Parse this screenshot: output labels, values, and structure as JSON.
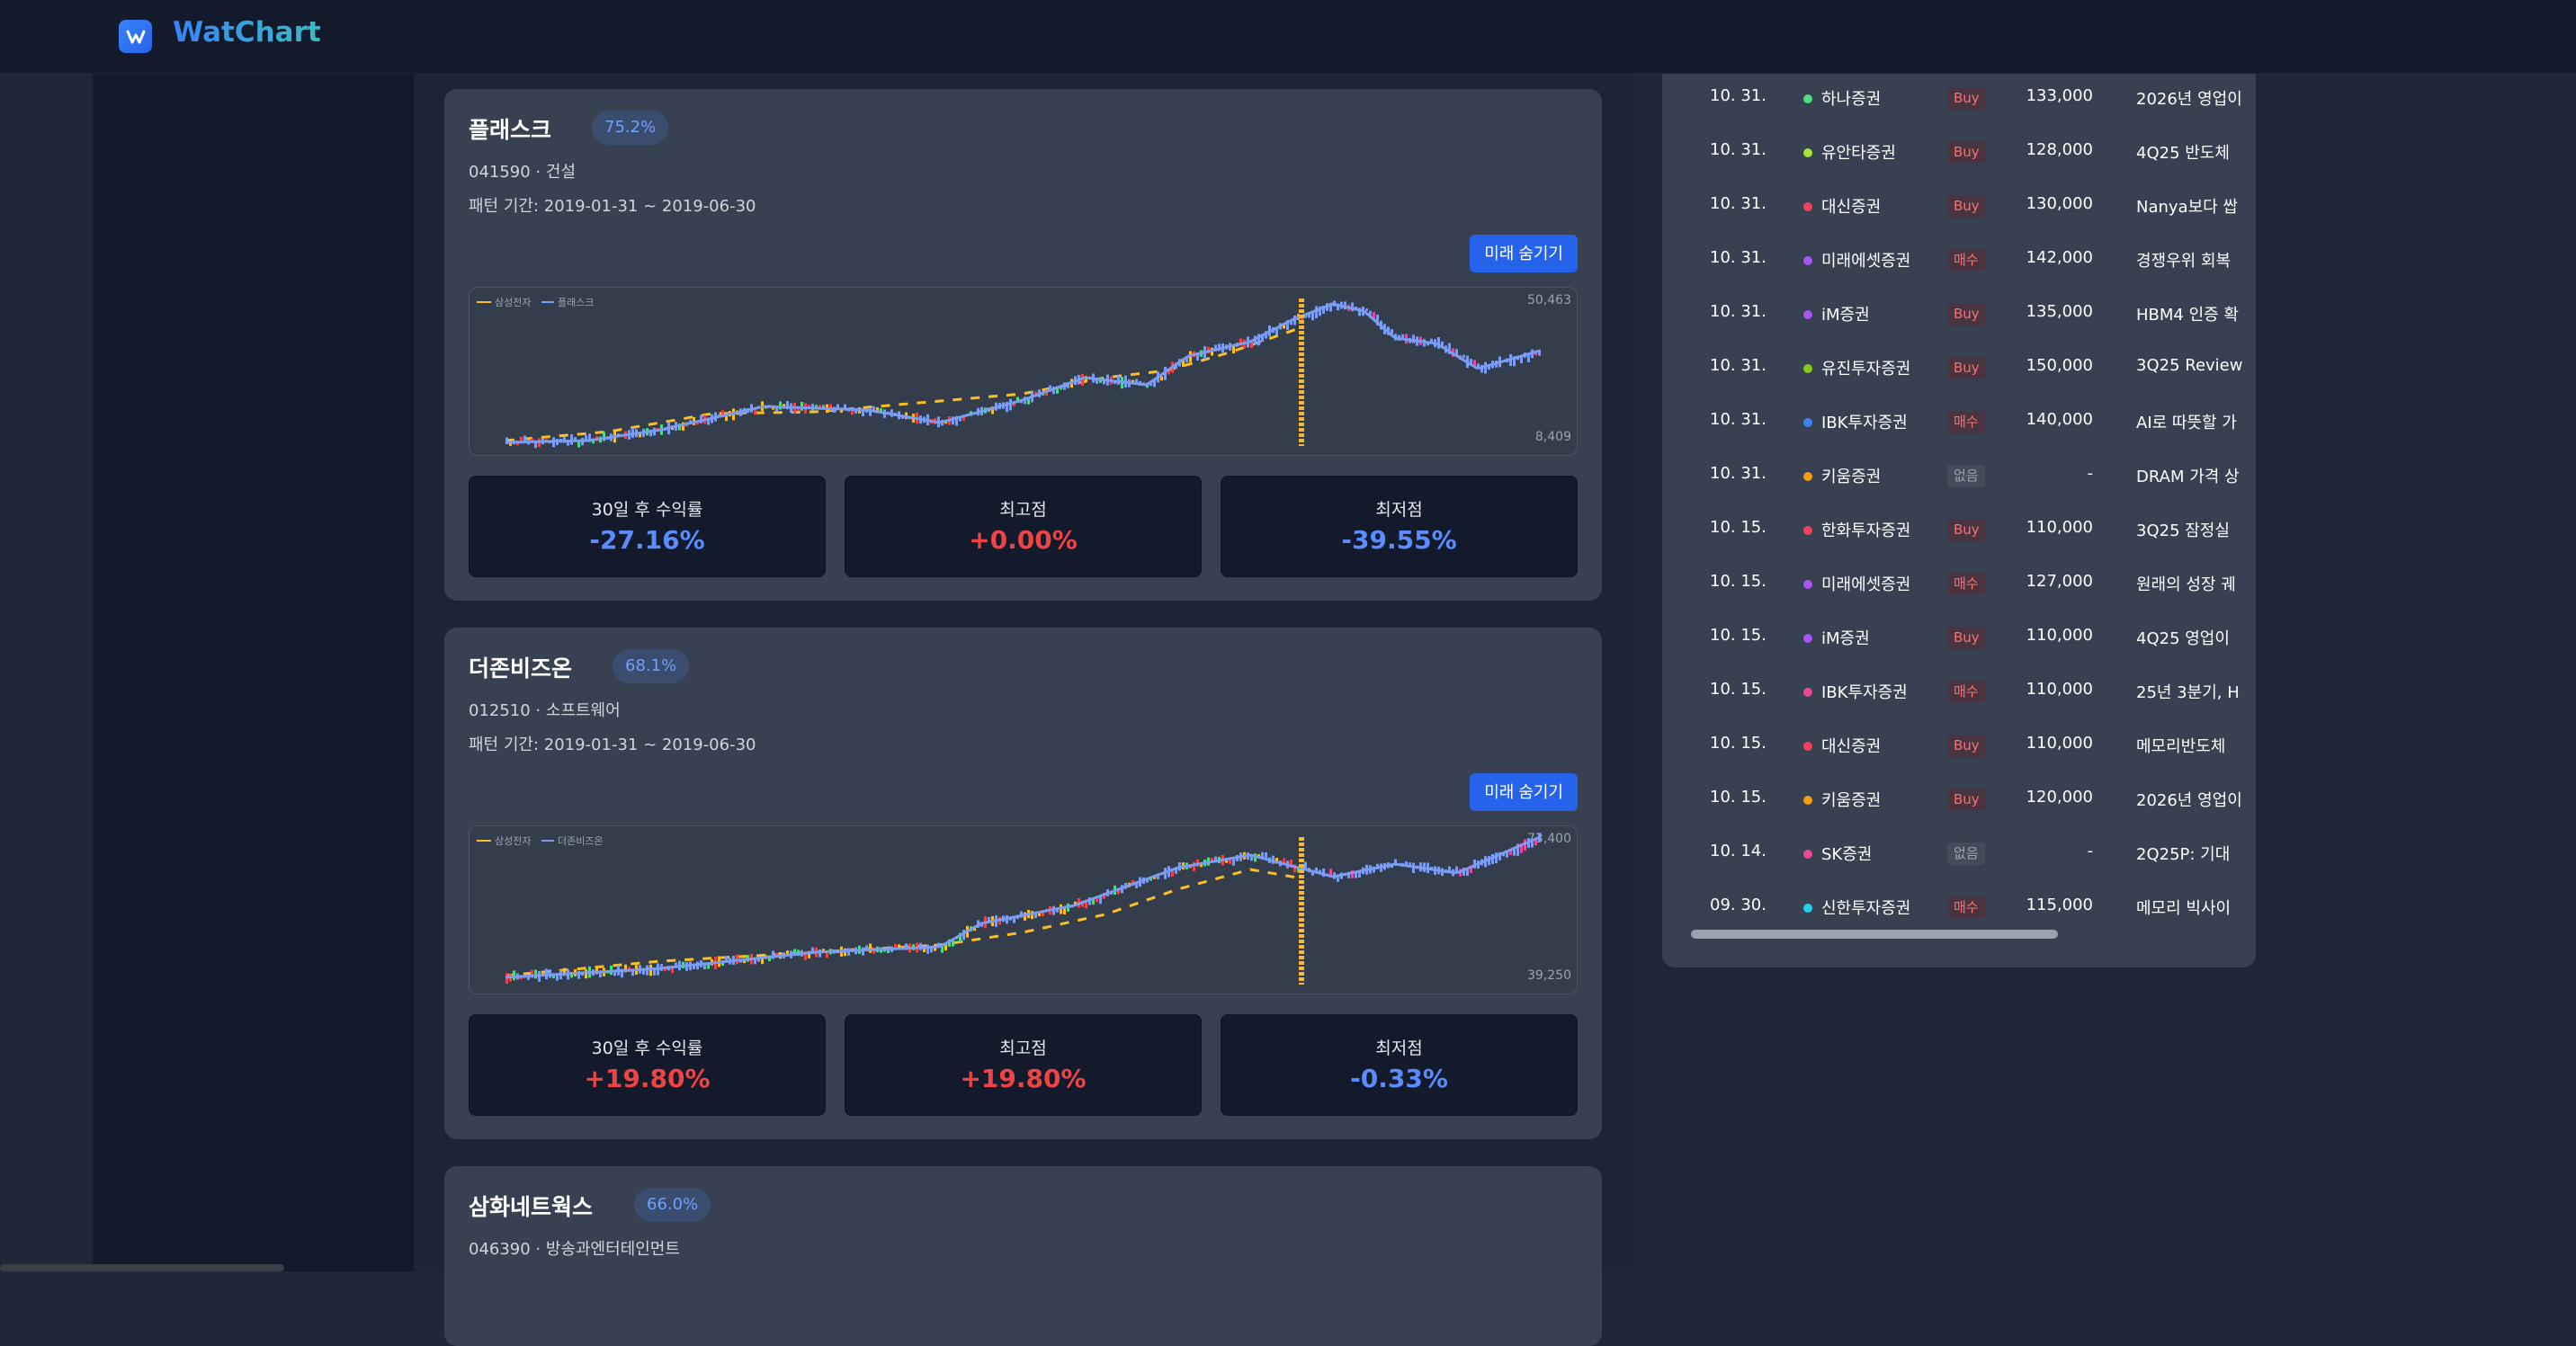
{
  "app": {
    "name": "WatChart"
  },
  "cards": [
    {
      "name": "플래스크",
      "similarity": "75.2%",
      "meta": "041590 · 건설",
      "period": "패턴 기간: 2019-01-31 ~ 2019-06-30",
      "toggle_label": "미래 숨기기",
      "legend_base": "삼성전자",
      "legend_match": "플래스크",
      "axis_max": "50,463",
      "axis_min": "8,409",
      "stats": [
        {
          "label": "30일 후 수익률",
          "value": "-27.16%",
          "sign": "neg"
        },
        {
          "label": "최고점",
          "value": "+0.00%",
          "sign": "pos"
        },
        {
          "label": "최저점",
          "value": "-39.55%",
          "sign": "neg"
        }
      ]
    },
    {
      "name": "더존비즈온",
      "similarity": "68.1%",
      "meta": "012510 · 소프트웨어",
      "period": "패턴 기간: 2019-01-31 ~ 2019-06-30",
      "toggle_label": "미래 숨기기",
      "legend_base": "삼성전자",
      "legend_match": "더존비즈온",
      "axis_max": "73,400",
      "axis_min": "39,250",
      "stats": [
        {
          "label": "30일 후 수익률",
          "value": "+19.80%",
          "sign": "pos"
        },
        {
          "label": "최고점",
          "value": "+19.80%",
          "sign": "pos"
        },
        {
          "label": "최저점",
          "value": "-0.33%",
          "sign": "neg"
        }
      ]
    },
    {
      "name": "삼화네트웍스",
      "similarity": "66.0%",
      "meta": "046390 · 방송과엔터테인먼트"
    }
  ],
  "reports": [
    {
      "date": "10. 31.",
      "firm": "하나증권",
      "dot": "#4ade80",
      "opinion": "Buy",
      "op_style": "red",
      "price": "133,000",
      "title": "2026년 영업이"
    },
    {
      "date": "10. 31.",
      "firm": "유안타증권",
      "dot": "#a3e635",
      "opinion": "Buy",
      "op_style": "red",
      "price": "128,000",
      "title": "4Q25 반도체"
    },
    {
      "date": "10. 31.",
      "firm": "대신증권",
      "dot": "#f43f5e",
      "opinion": "Buy",
      "op_style": "red",
      "price": "130,000",
      "title": "Nanya보다 쌉"
    },
    {
      "date": "10. 31.",
      "firm": "미래에셋증권",
      "dot": "#a855f7",
      "opinion": "매수",
      "op_style": "red",
      "price": "142,000",
      "title": "경쟁우위 회복"
    },
    {
      "date": "10. 31.",
      "firm": "iM증권",
      "dot": "#a855f7",
      "opinion": "Buy",
      "op_style": "red",
      "price": "135,000",
      "title": "HBM4 인증 확"
    },
    {
      "date": "10. 31.",
      "firm": "유진투자증권",
      "dot": "#84cc16",
      "opinion": "Buy",
      "op_style": "red",
      "price": "150,000",
      "title": "3Q25 Review"
    },
    {
      "date": "10. 31.",
      "firm": "IBK투자증권",
      "dot": "#3b82f6",
      "opinion": "매수",
      "op_style": "red",
      "price": "140,000",
      "title": "AI로 따뜻할 가"
    },
    {
      "date": "10. 31.",
      "firm": "키움증권",
      "dot": "#f59e0b",
      "opinion": "없음",
      "op_style": "gray",
      "price": "-",
      "title": "DRAM 가격 상"
    },
    {
      "date": "10. 15.",
      "firm": "한화투자증권",
      "dot": "#f43f5e",
      "opinion": "Buy",
      "op_style": "red",
      "price": "110,000",
      "title": "3Q25 잠정실"
    },
    {
      "date": "10. 15.",
      "firm": "미래에셋증권",
      "dot": "#a855f7",
      "opinion": "매수",
      "op_style": "red",
      "price": "127,000",
      "title": "원래의 성장 궤"
    },
    {
      "date": "10. 15.",
      "firm": "iM증권",
      "dot": "#a855f7",
      "opinion": "Buy",
      "op_style": "red",
      "price": "110,000",
      "title": "4Q25 영업이"
    },
    {
      "date": "10. 15.",
      "firm": "IBK투자증권",
      "dot": "#ec4899",
      "opinion": "매수",
      "op_style": "red",
      "price": "110,000",
      "title": "25년 3분기, H"
    },
    {
      "date": "10. 15.",
      "firm": "대신증권",
      "dot": "#f43f5e",
      "opinion": "Buy",
      "op_style": "red",
      "price": "110,000",
      "title": "메모리반도체"
    },
    {
      "date": "10. 15.",
      "firm": "키움증권",
      "dot": "#f59e0b",
      "opinion": "Buy",
      "op_style": "red",
      "price": "120,000",
      "title": "2026년 영업이"
    },
    {
      "date": "10. 14.",
      "firm": "SK증권",
      "dot": "#ec4899",
      "opinion": "없음",
      "op_style": "gray",
      "price": "-",
      "title": "2Q25P: 기대"
    },
    {
      "date": "09. 30.",
      "firm": "신한투자증권",
      "dot": "#22d3ee",
      "opinion": "매수",
      "op_style": "red",
      "price": "115,000",
      "title": "메모리 빅사이"
    }
  ],
  "colors": {
    "accent": "#2563eb",
    "positive": "#ef4444",
    "negative": "#5b8cff",
    "base_line": "#fbbf24",
    "match_line": "#7c9cf0"
  }
}
